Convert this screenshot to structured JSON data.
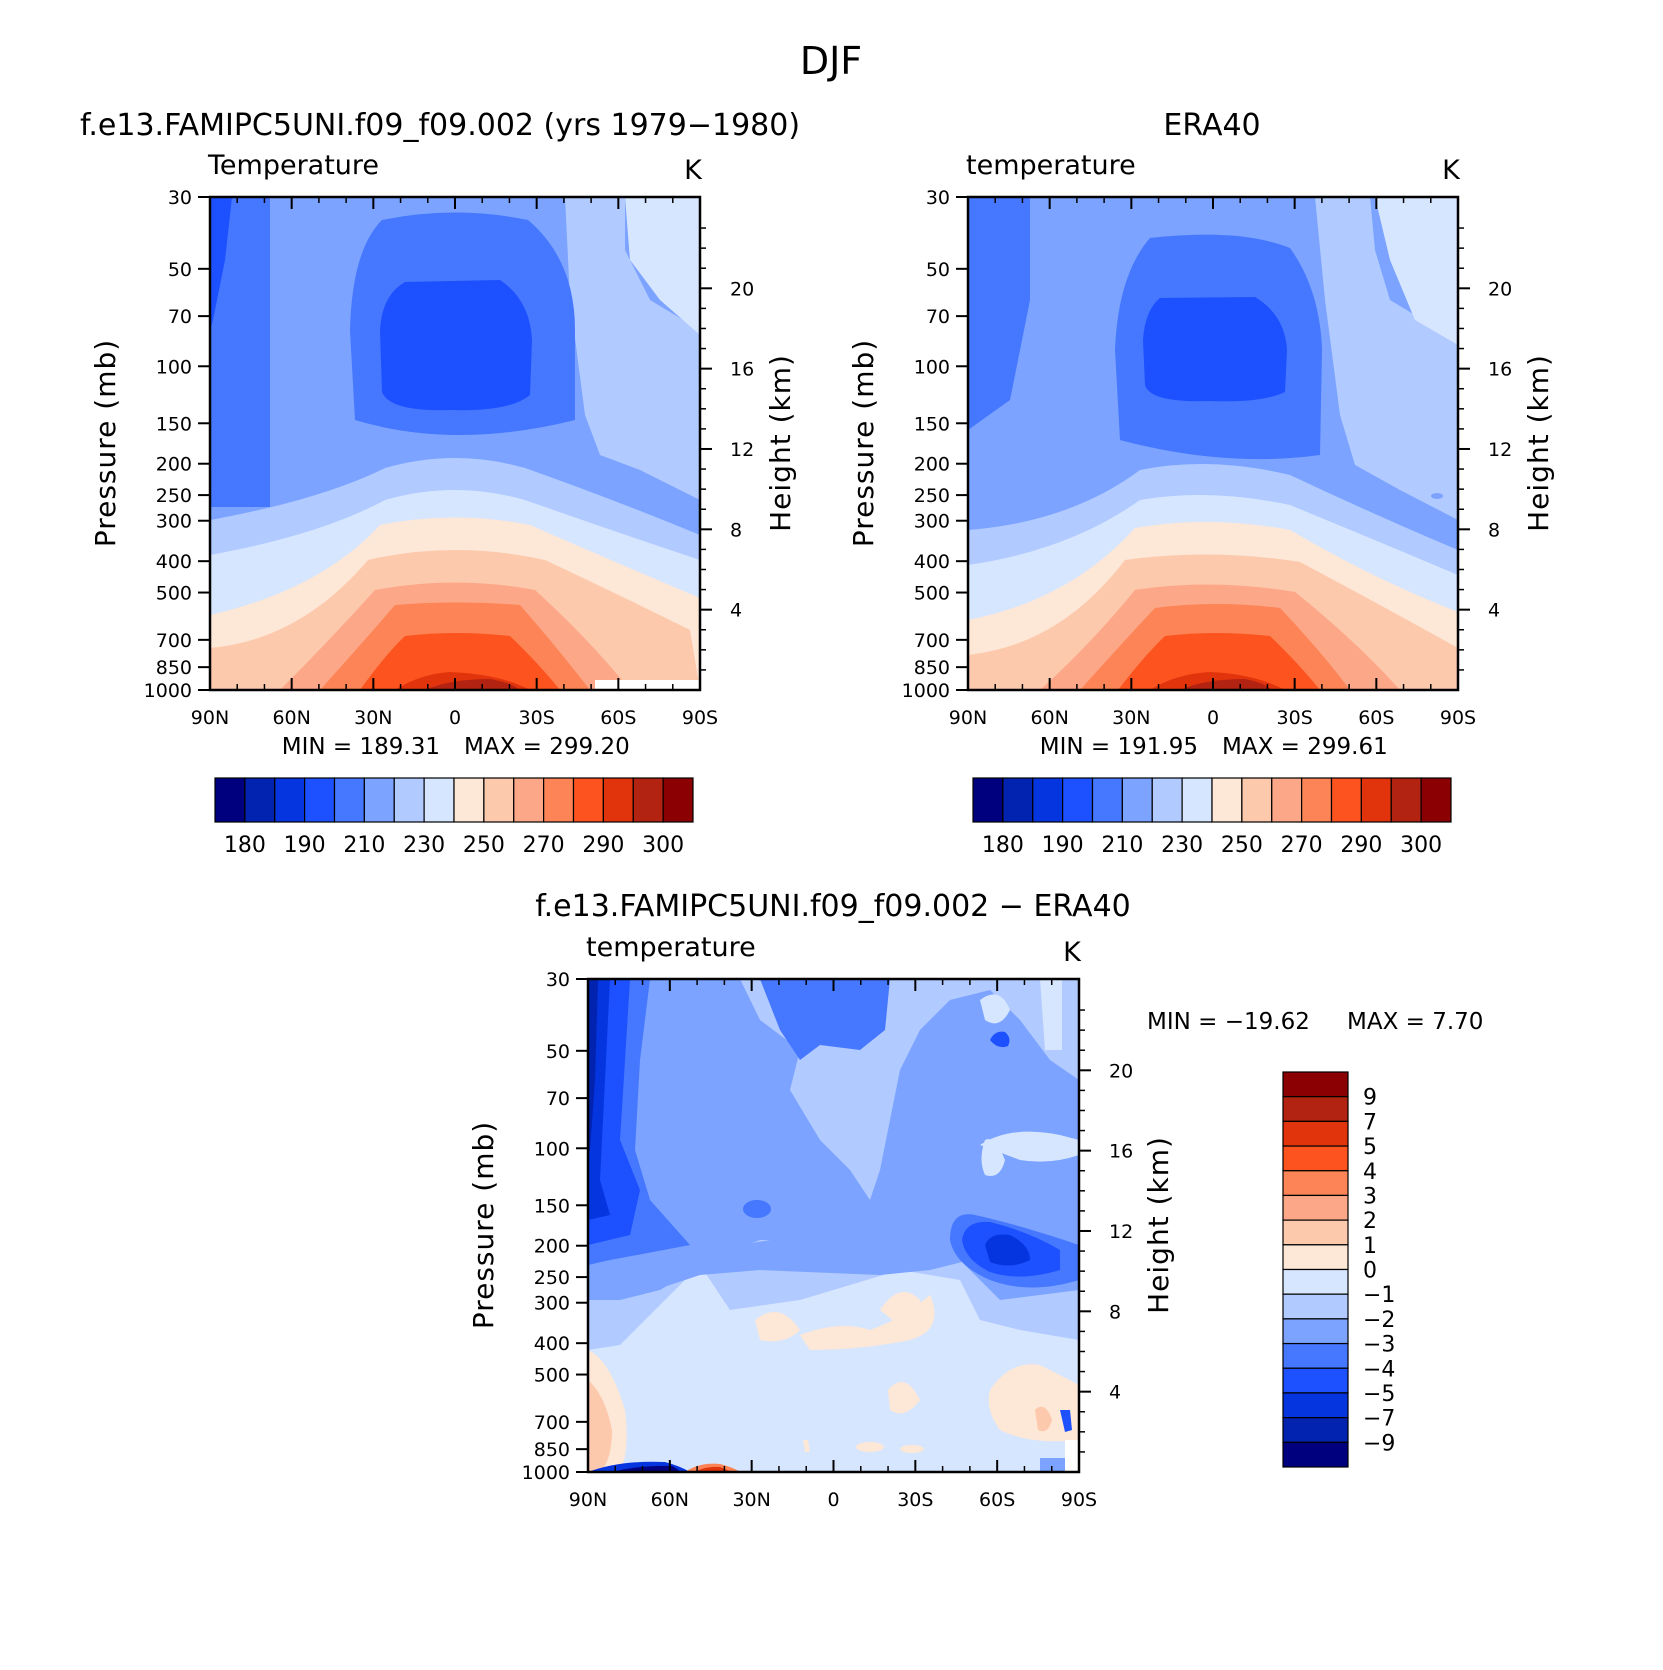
{
  "figure": {
    "title": "DJF",
    "units": "K",
    "lat_ticks": [
      "90N",
      "60N",
      "30N",
      "0",
      "30S",
      "60S",
      "90S"
    ],
    "pressure_ticks": [
      30,
      50,
      70,
      100,
      150,
      200,
      250,
      300,
      400,
      500,
      700,
      850,
      1000
    ],
    "height_ticks": [
      4,
      8,
      12,
      16,
      20
    ],
    "ylabel": "Pressure (mb)",
    "ylabel_right": "Height (km)"
  },
  "chart_data": [
    {
      "type": "heatmap",
      "name": "model",
      "title": "f.e13.FAMIPC5UNI.f09_f09.002 (yrs 1979−1980)",
      "subtitle": "Temperature",
      "units": "K",
      "min_label": "MIN = 189.31",
      "max_label": "MAX = 299.20",
      "min": 189.31,
      "max": 299.2,
      "x_range_deg": [
        90,
        -90
      ],
      "y_range_mb": [
        30,
        1000
      ],
      "levels": [
        180,
        185,
        190,
        200,
        210,
        220,
        230,
        240,
        250,
        260,
        270,
        280,
        290,
        295,
        300
      ],
      "colorbar_labels": [
        "180",
        "190",
        "210",
        "230",
        "250",
        "270",
        "290",
        "300"
      ],
      "colors": [
        "#00007f",
        "#0222b0",
        "#0535de",
        "#1d50ff",
        "#4577ff",
        "#7ba3ff",
        "#b1caff",
        "#d7e6ff",
        "#fde7d6",
        "#fdc9ad",
        "#fca787",
        "#fc8456",
        "#fc531f",
        "#e2340c",
        "#b32311",
        "#8a0003"
      ]
    },
    {
      "type": "heatmap",
      "name": "reference",
      "title": "ERA40",
      "subtitle": "temperature",
      "units": "K",
      "min_label": "MIN = 191.95",
      "max_label": "MAX = 299.61",
      "min": 191.95,
      "max": 299.61,
      "x_range_deg": [
        90,
        -90
      ],
      "y_range_mb": [
        30,
        1000
      ],
      "levels": [
        180,
        185,
        190,
        200,
        210,
        220,
        230,
        240,
        250,
        260,
        270,
        280,
        290,
        295,
        300
      ],
      "colorbar_labels": [
        "180",
        "190",
        "210",
        "230",
        "250",
        "270",
        "290",
        "300"
      ],
      "colors": [
        "#00007f",
        "#0222b0",
        "#0535de",
        "#1d50ff",
        "#4577ff",
        "#7ba3ff",
        "#b1caff",
        "#d7e6ff",
        "#fde7d6",
        "#fdc9ad",
        "#fca787",
        "#fc8456",
        "#fc531f",
        "#e2340c",
        "#b32311",
        "#8a0003"
      ]
    },
    {
      "type": "heatmap",
      "name": "difference",
      "title": "f.e13.FAMIPC5UNI.f09_f09.002 − ERA40",
      "subtitle": "temperature",
      "units": "K",
      "min_label": "MIN = −19.62",
      "max_label": "MAX =    7.70",
      "min": -19.62,
      "max": 7.7,
      "x_range_deg": [
        90,
        -90
      ],
      "y_range_mb": [
        30,
        1000
      ],
      "levels": [
        -9,
        -7,
        -5,
        -4,
        -3,
        -2,
        -1,
        0,
        1,
        2,
        3,
        4,
        5,
        7,
        9
      ],
      "colorbar_labels": [
        "9",
        "7",
        "5",
        "4",
        "3",
        "2",
        "1",
        "0",
        "−1",
        "−2",
        "−3",
        "−4",
        "−5",
        "−7",
        "−9"
      ],
      "colors": [
        "#00007f",
        "#0222b0",
        "#0535de",
        "#1d50ff",
        "#4577ff",
        "#7ba3ff",
        "#b1caff",
        "#d7e6ff",
        "#fde7d6",
        "#fdc9ad",
        "#fca787",
        "#fc8456",
        "#fc531f",
        "#e2340c",
        "#b32311",
        "#8a0003"
      ]
    }
  ]
}
